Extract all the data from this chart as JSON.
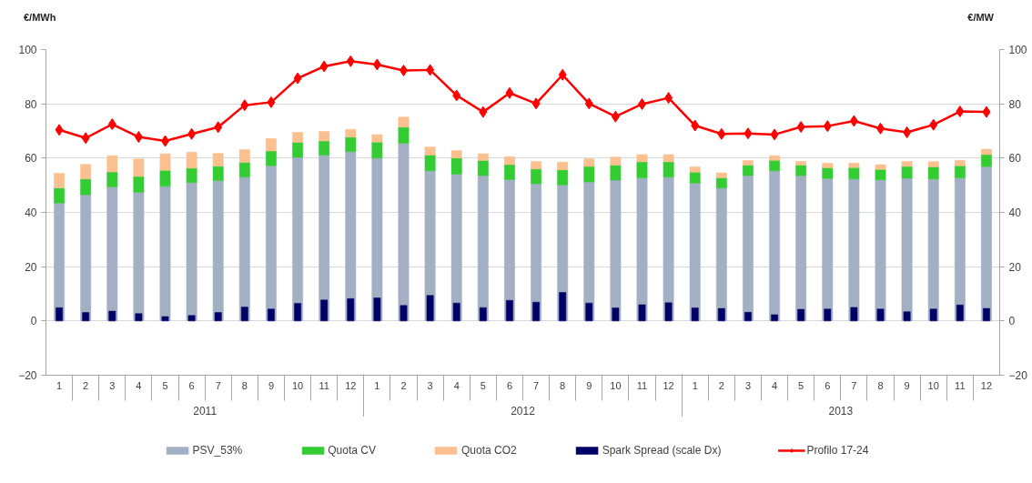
{
  "chart_data": {
    "type": "bar",
    "stacked": true,
    "categories": [
      "1",
      "2",
      "3",
      "4",
      "5",
      "6",
      "7",
      "8",
      "9",
      "10",
      "11",
      "12",
      "1",
      "2",
      "3",
      "4",
      "5",
      "6",
      "7",
      "8",
      "9",
      "10",
      "11",
      "12",
      "1",
      "2",
      "3",
      "4",
      "5",
      "6",
      "7",
      "8",
      "9",
      "10",
      "11",
      "12"
    ],
    "annotations": [
      "2011",
      "2012",
      "2013"
    ],
    "ylabel": "€/MWh",
    "y2label": "€/MW",
    "ylim": [
      -20,
      100
    ],
    "yticks": [
      -20,
      0,
      20,
      40,
      60,
      80,
      100
    ],
    "y2lim": [
      -20,
      100
    ],
    "y2ticks": [
      -20,
      0,
      20,
      40,
      60,
      80,
      100
    ],
    "grid": "y",
    "legend": "bottom",
    "series": [
      {
        "name": "PSV_53%",
        "color": "#a3b0c4",
        "values": [
          43.4,
          46.5,
          49.4,
          47.4,
          49.6,
          51.0,
          51.7,
          53.0,
          57.2,
          60.3,
          61.1,
          62.4,
          60.0,
          65.5,
          55.3,
          54.1,
          53.6,
          52.1,
          50.6,
          50.1,
          51.2,
          51.9,
          52.7,
          53.0,
          50.8,
          49.0,
          53.6,
          55.3,
          53.6,
          52.5,
          52.3,
          52.0,
          52.6,
          52.3,
          52.7,
          56.9
        ]
      },
      {
        "name": "Quota CV",
        "color": "#33cc33",
        "values": [
          5.6,
          5.8,
          5.5,
          5.8,
          5.9,
          5.3,
          5.3,
          5.4,
          5.4,
          5.5,
          5.2,
          5.3,
          5.9,
          5.9,
          5.8,
          5.9,
          5.5,
          5.5,
          5.4,
          5.6,
          5.7,
          5.5,
          5.9,
          5.6,
          4.0,
          3.7,
          3.8,
          3.9,
          3.8,
          3.9,
          4.2,
          3.8,
          4.3,
          4.5,
          4.5,
          4.4
        ]
      },
      {
        "name": "Quota CO2",
        "color": "#fac08f",
        "values": [
          5.4,
          5.4,
          6.0,
          6.5,
          6.1,
          5.9,
          4.7,
          4.7,
          4.6,
          3.7,
          3.5,
          2.9,
          2.8,
          3.7,
          3.0,
          2.8,
          2.5,
          2.9,
          2.8,
          2.8,
          2.9,
          3.0,
          2.7,
          2.7,
          2.0,
          1.9,
          1.7,
          1.7,
          1.4,
          1.7,
          1.7,
          1.8,
          1.9,
          1.9,
          2.0,
          2.0
        ]
      },
      {
        "name": "Spark Spread (scale Dx)",
        "axis": "y2",
        "color": "#000066",
        "values": [
          4.9,
          3.1,
          3.6,
          2.7,
          1.6,
          2.0,
          3.1,
          5.1,
          4.4,
          6.5,
          7.7,
          8.2,
          8.5,
          5.7,
          9.4,
          6.6,
          4.9,
          7.6,
          6.9,
          10.5,
          6.6,
          4.8,
          6.0,
          6.7,
          4.8,
          4.6,
          3.2,
          2.3,
          4.3,
          4.4,
          5.0,
          4.4,
          3.4,
          4.4,
          5.9,
          4.6
        ]
      },
      {
        "name": "Profilo 17-24",
        "type": "line",
        "marker": "diamond",
        "color": "#ff0000",
        "values": [
          70.4,
          67.4,
          72.5,
          67.8,
          66.3,
          68.9,
          71.4,
          79.5,
          80.6,
          89.4,
          93.8,
          95.7,
          94.5,
          92.3,
          92.5,
          83.1,
          77.0,
          84.0,
          80.1,
          90.7,
          80.1,
          75.3,
          79.9,
          82.2,
          72.0,
          68.9,
          69.1,
          68.7,
          71.5,
          71.8,
          73.7,
          70.9,
          69.5,
          72.3,
          77.2,
          77.0
        ]
      }
    ]
  }
}
